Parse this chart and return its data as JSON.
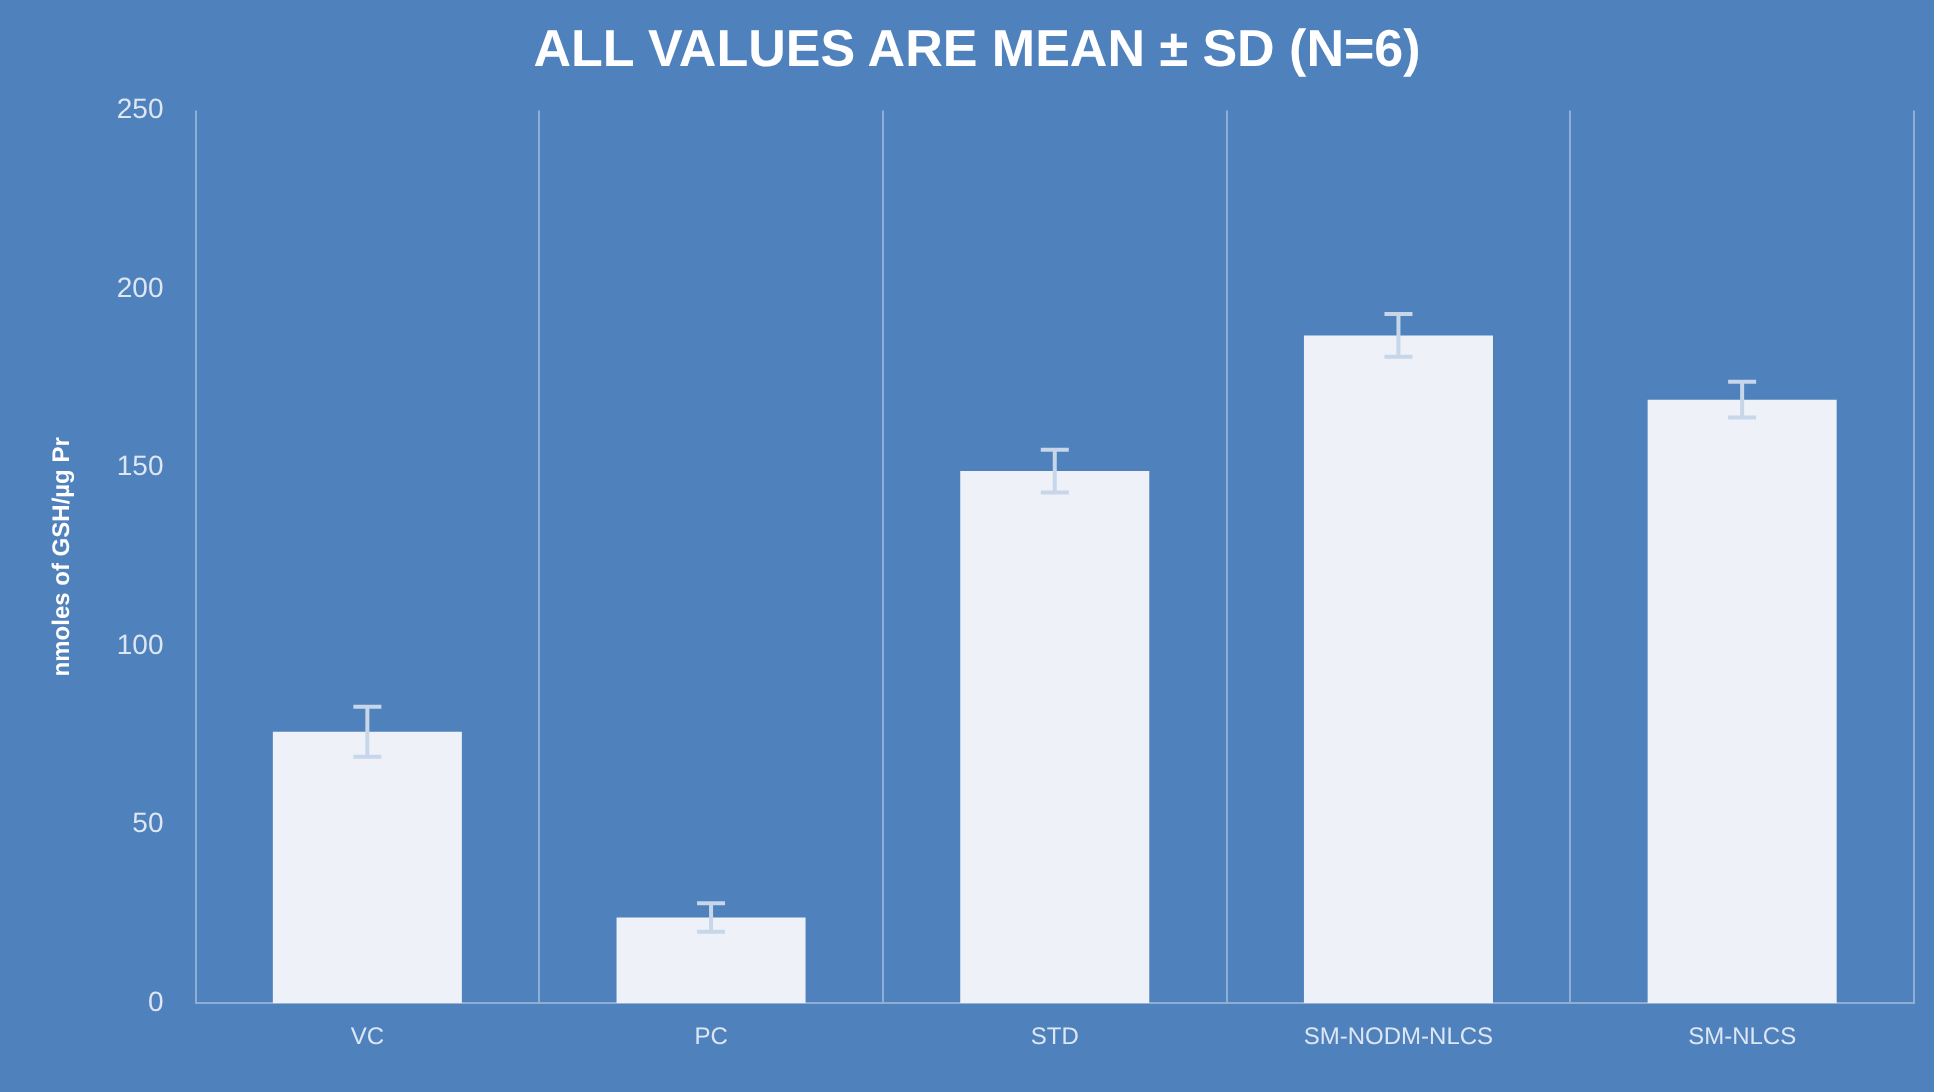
{
  "chart_data": {
    "type": "bar",
    "title": "ALL VALUES ARE MEAN ± SD (N=6)",
    "ylabel": "nmoles of GSH/µg Pr",
    "categories": [
      "VC",
      "PC",
      "STD",
      "SM-NODM-NLCS",
      "SM-NLCS"
    ],
    "values": [
      76,
      24,
      149,
      187,
      169
    ],
    "errors": [
      7,
      4,
      6,
      6,
      5
    ],
    "color": "#eef2f8",
    "ylim": [
      0,
      250
    ],
    "yticks": [
      0,
      50,
      100,
      150,
      200,
      250
    ],
    "grid": "x",
    "legend": false
  }
}
